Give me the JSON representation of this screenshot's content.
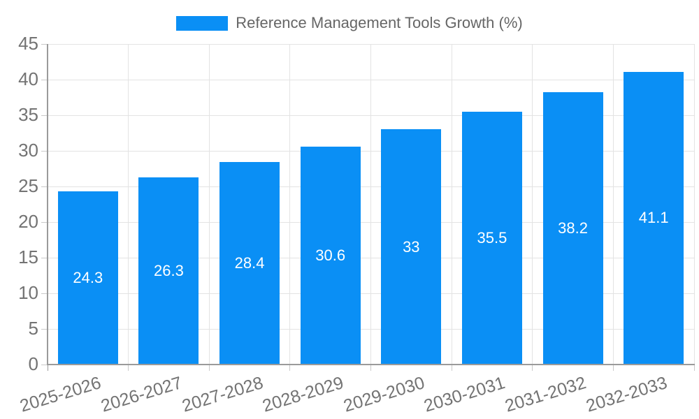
{
  "chart_data": {
    "type": "bar",
    "title": "Reference Management Tools Growth (%)",
    "categories": [
      "2025-2026",
      "2026-2027",
      "2027-2028",
      "2028-2029",
      "2029-2030",
      "2030-2031",
      "2031-2032",
      "2032-2033"
    ],
    "values": [
      24.3,
      26.3,
      28.4,
      30.6,
      33,
      35.5,
      38.2,
      41.1
    ],
    "xlabel": "",
    "ylabel": "",
    "ylim": [
      0,
      45
    ],
    "yticks": [
      0,
      5,
      10,
      15,
      20,
      25,
      30,
      35,
      40,
      45
    ],
    "grid": true,
    "legend_position": "top-center",
    "x_label_rotation_deg": -17,
    "colors": {
      "bar": "#0a8ff5",
      "value_label": "#ffffff",
      "tick_label": "#737373",
      "legend_text": "#666666",
      "axis": "#9a9a9a",
      "gridline": "#e3e3e3",
      "tick": "#c9c9c9",
      "background": "#ffffff"
    }
  }
}
